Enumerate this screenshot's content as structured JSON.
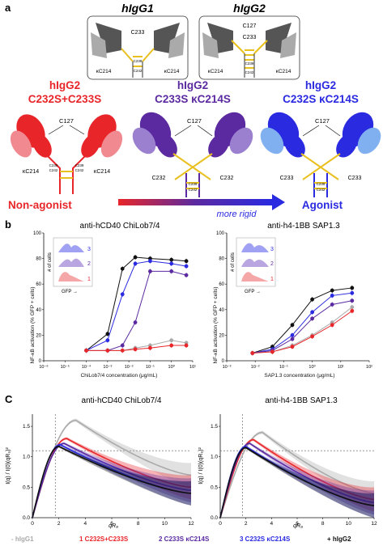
{
  "panel_a": {
    "letter": "a",
    "top_labels": {
      "hIgG1": "hIgG1",
      "hIgG2": "hIgG2"
    },
    "igg1_diagram": {
      "c233": "C233",
      "k1": "κC214",
      "k2": "κC214",
      "s1": "C239",
      "s2": "C242"
    },
    "igg2_diagram": {
      "c127": "C127",
      "c233": "C233",
      "k1": "κC214",
      "k2": "κC214",
      "s1": "C239",
      "s2": "C242"
    },
    "variants": [
      {
        "title1": "hIgG2",
        "title2": "C232S+C233S",
        "color": "#e8262a",
        "c127": "C127",
        "left": "κC214",
        "right": "κC214",
        "s1": "C239",
        "s2": "C242",
        "s3": "C239",
        "s4": "C242"
      },
      {
        "title1": "hIgG2",
        "title2": "C233S κC214S",
        "color": "#5b2aa0",
        "c127": "C127",
        "left": "C232",
        "right": "C232",
        "s1": "C239",
        "s2": "C242"
      },
      {
        "title1": "hIgG2",
        "title2": "C232S κC214S",
        "color": "#2a2ae0",
        "c127": "C127",
        "left": "C233",
        "right": "C233",
        "s1": "C239",
        "s2": "C242"
      }
    ],
    "non_agonist": "Non-agonist",
    "more_rigid": "more rigid",
    "agonist": "Agonist"
  },
  "panel_b": {
    "letter": "b",
    "colors": {
      "black": "#111111",
      "grey": "#aaaaaa",
      "red": "#e8262a",
      "purple": "#5b2aa0",
      "blue": "#2a2ae0"
    },
    "left": {
      "title": "anti-hCD40 ChiLob7/4",
      "xlabel": "ChiLob7/4 concentration (μg/mL)",
      "ylabel": "NF-κB activation (% GFP + cells)",
      "xticks": [
        "10⁻⁶",
        "10⁻⁵",
        "10⁻⁴",
        "10⁻³",
        "10⁻²",
        "10⁻¹",
        "10⁰",
        "10¹"
      ],
      "yticks": [
        "0",
        "20",
        "40",
        "60",
        "80",
        "100"
      ],
      "inset": {
        "ylabel": "# of cells",
        "xlabel": "GFP →",
        "n1": "1",
        "n2": "2",
        "n3": "3"
      }
    },
    "right": {
      "title": "anti-h4-1BB SAP1.3",
      "xlabel": "SAP1.3 concentration (μg/mL)",
      "ylabel": "NF-κB activation (% GFP + cells)",
      "xticks": [
        "10⁻³",
        "10⁻²",
        "10⁻¹",
        "10⁰",
        "10¹",
        "10²"
      ],
      "yticks": [
        "0",
        "20",
        "40",
        "60",
        "80",
        "100"
      ],
      "inset": {
        "ylabel": "# of cells",
        "xlabel": "GFP →",
        "n1": "1",
        "n2": "2",
        "n3": "3"
      }
    }
  },
  "panel_c": {
    "letter": "C",
    "left": {
      "title": "anti-hCD40 ChiLob7/4",
      "ylabel": "I(q) / I(0)(qR₉)²",
      "xlabel": "qR₉",
      "xticks": [
        "0",
        "2",
        "4",
        "6",
        "8",
        "10",
        "12"
      ],
      "yticks": [
        "0.0",
        "0.5",
        "1.0",
        "1.5"
      ]
    },
    "right": {
      "title": "anti-h4-1BB SAP1.3",
      "ylabel": "I(q) / I(0)(qR₉)²",
      "xlabel": "qR₉",
      "xticks": [
        "0",
        "2",
        "4",
        "6",
        "8",
        "10",
        "12"
      ],
      "yticks": [
        "0.0",
        "0.5",
        "1.0",
        "1.5"
      ]
    },
    "legend": [
      {
        "text": "- hIgG1",
        "color": "#aaaaaa"
      },
      {
        "text": "1 C232S+C233S",
        "color": "#e8262a"
      },
      {
        "text": "2 C233S κC214S",
        "color": "#5b2aa0"
      },
      {
        "text": "3 C232S κC214S",
        "color": "#2a2ae0"
      },
      {
        "text": "+ hIgG2",
        "color": "#111111"
      }
    ]
  },
  "chart_data": [
    {
      "type": "line",
      "title": "anti-hCD40 ChiLob7/4",
      "xlabel": "ChiLob7/4 concentration (μg/mL)",
      "ylabel": "NF-κB activation (% GFP + cells)",
      "xscale": "log",
      "xlim": [
        1e-06,
        10
      ],
      "ylim": [
        0,
        100
      ],
      "x": [
        0.0001,
        0.001,
        0.005,
        0.02,
        0.1,
        1,
        5
      ],
      "series": [
        {
          "color": "#111111",
          "values": [
            8,
            21,
            72,
            81,
            80,
            79,
            78
          ]
        },
        {
          "color": "#2a2ae0",
          "values": [
            8,
            16,
            52,
            76,
            78,
            76,
            74
          ]
        },
        {
          "color": "#5b2aa0",
          "values": [
            8,
            8,
            12,
            30,
            70,
            70,
            67
          ]
        },
        {
          "color": "#aaaaaa",
          "values": [
            8,
            8,
            8,
            10,
            12,
            16,
            14
          ]
        },
        {
          "color": "#e8262a",
          "values": [
            8,
            8,
            8,
            9,
            10,
            12,
            12
          ]
        }
      ]
    },
    {
      "type": "line",
      "title": "anti-h4-1BB SAP1.3",
      "xlabel": "SAP1.3 concentration (μg/mL)",
      "ylabel": "NF-κB activation (% GFP + cells)",
      "xscale": "log",
      "xlim": [
        0.001,
        100
      ],
      "ylim": [
        0,
        100
      ],
      "x": [
        0.008,
        0.04,
        0.2,
        1,
        5,
        25
      ],
      "series": [
        {
          "color": "#111111",
          "values": [
            6,
            11,
            28,
            48,
            55,
            57
          ]
        },
        {
          "color": "#2a2ae0",
          "values": [
            6,
            9,
            20,
            38,
            51,
            53
          ]
        },
        {
          "color": "#5b2aa0",
          "values": [
            6,
            8,
            17,
            33,
            44,
            47
          ]
        },
        {
          "color": "#aaaaaa",
          "values": [
            6,
            7,
            12,
            20,
            30,
            42
          ]
        },
        {
          "color": "#e8262a",
          "values": [
            6,
            7,
            11,
            19,
            28,
            39
          ]
        }
      ]
    },
    {
      "type": "scatter",
      "title": "anti-hCD40 ChiLob7/4",
      "xlabel": "qR₉",
      "ylabel": "I(q) / I(0)(qR₉)²",
      "xlim": [
        0,
        12
      ],
      "ylim": [
        0,
        1.7
      ],
      "reference_lines": {
        "x": 1.73,
        "y": 1.1
      },
      "series": [
        {
          "color": "#aaaaaa",
          "peak_x": 3.3,
          "peak_y": 1.6,
          "tail_y": 0.7
        },
        {
          "color": "#e8262a",
          "peak_x": 2.6,
          "peak_y": 1.3,
          "tail_y": 0.5
        },
        {
          "color": "#5b2aa0",
          "peak_x": 2.4,
          "peak_y": 1.22,
          "tail_y": 0.45
        },
        {
          "color": "#2a2ae0",
          "peak_x": 2.1,
          "peak_y": 1.2,
          "tail_y": 0.4
        },
        {
          "color": "#111111",
          "peak_x": 2.0,
          "peak_y": 1.17,
          "tail_y": 0.4
        }
      ]
    },
    {
      "type": "scatter",
      "title": "anti-h4-1BB SAP1.3",
      "xlabel": "qR₉",
      "ylabel": "I(q) / I(0)(qR₉)²",
      "xlim": [
        0,
        12
      ],
      "ylim": [
        0,
        1.7
      ],
      "reference_lines": {
        "x": 1.73,
        "y": 1.1
      },
      "series": [
        {
          "color": "#aaaaaa",
          "peak_x": 3.3,
          "peak_y": 1.4,
          "tail_y": 0.4
        },
        {
          "color": "#e8262a",
          "peak_x": 2.6,
          "peak_y": 1.28,
          "tail_y": 0.3
        },
        {
          "color": "#5b2aa0",
          "peak_x": 2.3,
          "peak_y": 1.22,
          "tail_y": 0.25
        },
        {
          "color": "#2a2ae0",
          "peak_x": 2.0,
          "peak_y": 1.17,
          "tail_y": 0.2
        },
        {
          "color": "#111111",
          "peak_x": 2.0,
          "peak_y": 1.15,
          "tail_y": 0.2
        }
      ]
    }
  ]
}
